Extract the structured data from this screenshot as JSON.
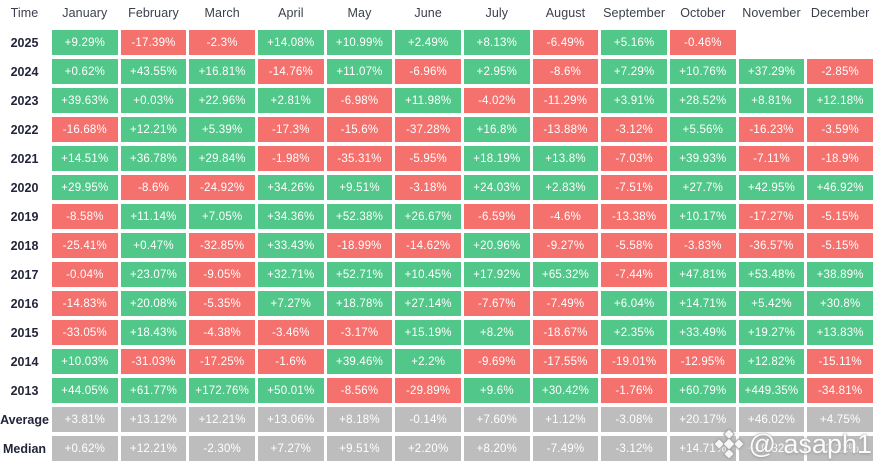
{
  "colors": {
    "positive": "#51c789",
    "negative": "#f4716d",
    "stat_neutral": "#bdbdbd",
    "header_text": "#3a3f4b",
    "row_label_text": "#23263a",
    "cell_text": "#ffffff",
    "background": "#ffffff"
  },
  "watermark": {
    "handle": "@ asaph1",
    "logo": "binance-diamond-icon"
  },
  "chart_data": {
    "type": "heatmap",
    "row_header": "Time",
    "columns": [
      "January",
      "February",
      "March",
      "April",
      "May",
      "June",
      "July",
      "August",
      "September",
      "October",
      "November",
      "December"
    ],
    "legend": "green = positive monthly return, red = negative monthly return, gray = summary statistic, blank = no data yet",
    "rows": [
      {
        "label": "2025",
        "stat": false,
        "values": [
          "+9.29%",
          "-17.39%",
          "-2.3%",
          "+14.08%",
          "+10.99%",
          "+2.49%",
          "+8.13%",
          "-6.49%",
          "+5.16%",
          "-0.46%",
          "",
          ""
        ]
      },
      {
        "label": "2024",
        "stat": false,
        "values": [
          "+0.62%",
          "+43.55%",
          "+16.81%",
          "-14.76%",
          "+11.07%",
          "-6.96%",
          "+2.95%",
          "-8.6%",
          "+7.29%",
          "+10.76%",
          "+37.29%",
          "-2.85%"
        ]
      },
      {
        "label": "2023",
        "stat": false,
        "values": [
          "+39.63%",
          "+0.03%",
          "+22.96%",
          "+2.81%",
          "-6.98%",
          "+11.98%",
          "-4.02%",
          "-11.29%",
          "+3.91%",
          "+28.52%",
          "+8.81%",
          "+12.18%"
        ]
      },
      {
        "label": "2022",
        "stat": false,
        "values": [
          "-16.68%",
          "+12.21%",
          "+5.39%",
          "-17.3%",
          "-15.6%",
          "-37.28%",
          "+16.8%",
          "-13.88%",
          "-3.12%",
          "+5.56%",
          "-16.23%",
          "-3.59%"
        ]
      },
      {
        "label": "2021",
        "stat": false,
        "values": [
          "+14.51%",
          "+36.78%",
          "+29.84%",
          "-1.98%",
          "-35.31%",
          "-5.95%",
          "+18.19%",
          "+13.8%",
          "-7.03%",
          "+39.93%",
          "-7.11%",
          "-18.9%"
        ]
      },
      {
        "label": "2020",
        "stat": false,
        "values": [
          "+29.95%",
          "-8.6%",
          "-24.92%",
          "+34.26%",
          "+9.51%",
          "-3.18%",
          "+24.03%",
          "+2.83%",
          "-7.51%",
          "+27.7%",
          "+42.95%",
          "+46.92%"
        ]
      },
      {
        "label": "2019",
        "stat": false,
        "values": [
          "-8.58%",
          "+11.14%",
          "+7.05%",
          "+34.36%",
          "+52.38%",
          "+26.67%",
          "-6.59%",
          "-4.6%",
          "-13.38%",
          "+10.17%",
          "-17.27%",
          "-5.15%"
        ]
      },
      {
        "label": "2018",
        "stat": false,
        "values": [
          "-25.41%",
          "+0.47%",
          "-32.85%",
          "+33.43%",
          "-18.99%",
          "-14.62%",
          "+20.96%",
          "-9.27%",
          "-5.58%",
          "-3.83%",
          "-36.57%",
          "-5.15%"
        ]
      },
      {
        "label": "2017",
        "stat": false,
        "values": [
          "-0.04%",
          "+23.07%",
          "-9.05%",
          "+32.71%",
          "+52.71%",
          "+10.45%",
          "+17.92%",
          "+65.32%",
          "-7.44%",
          "+47.81%",
          "+53.48%",
          "+38.89%"
        ]
      },
      {
        "label": "2016",
        "stat": false,
        "values": [
          "-14.83%",
          "+20.08%",
          "-5.35%",
          "+7.27%",
          "+18.78%",
          "+27.14%",
          "-7.67%",
          "-7.49%",
          "+6.04%",
          "+14.71%",
          "+5.42%",
          "+30.8%"
        ]
      },
      {
        "label": "2015",
        "stat": false,
        "values": [
          "-33.05%",
          "+18.43%",
          "-4.38%",
          "-3.46%",
          "-3.17%",
          "+15.19%",
          "+8.2%",
          "-18.67%",
          "+2.35%",
          "+33.49%",
          "+19.27%",
          "+13.83%"
        ]
      },
      {
        "label": "2014",
        "stat": false,
        "values": [
          "+10.03%",
          "-31.03%",
          "-17.25%",
          "-1.6%",
          "+39.46%",
          "+2.2%",
          "-9.69%",
          "-17.55%",
          "-19.01%",
          "-12.95%",
          "+12.82%",
          "-15.11%"
        ]
      },
      {
        "label": "2013",
        "stat": false,
        "values": [
          "+44.05%",
          "+61.77%",
          "+172.76%",
          "+50.01%",
          "-8.56%",
          "-29.89%",
          "+9.6%",
          "+30.42%",
          "-1.76%",
          "+60.79%",
          "+449.35%",
          "-34.81%"
        ]
      },
      {
        "label": "Average",
        "stat": true,
        "values": [
          "+3.81%",
          "+13.12%",
          "+12.21%",
          "+13.06%",
          "+8.18%",
          "-0.14%",
          "+7.60%",
          "+1.12%",
          "-3.08%",
          "+20.17%",
          "+46.02%",
          "+4.75%"
        ]
      },
      {
        "label": "Median",
        "stat": true,
        "values": [
          "+0.62%",
          "+12.21%",
          "-2.30%",
          "+7.27%",
          "+9.51%",
          "+2.20%",
          "+8.20%",
          "-7.49%",
          "-3.12%",
          "+14.71%",
          "+10.82%",
          "-3.22%"
        ]
      }
    ]
  }
}
